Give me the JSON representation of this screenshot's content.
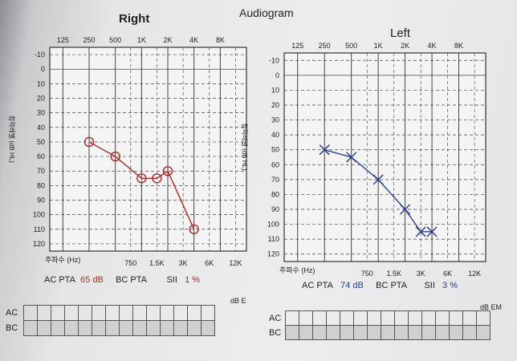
{
  "title": "Audiogram",
  "ears": [
    {
      "side": "Right",
      "marker": "circle",
      "color": "#b02a2a",
      "top_freq_labels": [
        "125",
        "250",
        "500",
        "1K",
        "2K",
        "4K",
        "8K"
      ],
      "bottom_freq_labels": [
        "750",
        "1.5K",
        "3K",
        "6K",
        "12K"
      ],
      "bottom_axis_label": "주파수 (Hz)",
      "y_axis_label": "청력레벨 (dB HL)",
      "y_ticks": [
        -10,
        0,
        10,
        20,
        30,
        40,
        50,
        60,
        70,
        80,
        90,
        100,
        110,
        120
      ],
      "summary": {
        "ac_pta_label": "AC PTA",
        "ac_pta_value": "65 dB",
        "bc_pta_label": "BC PTA",
        "sii_label": "SII",
        "sii_value": "1 %"
      },
      "table_unit": "dB E",
      "row_labels": [
        "AC",
        "BC"
      ]
    },
    {
      "side": "Left",
      "marker": "cross",
      "color": "#2d3f8c",
      "top_freq_labels": [
        "125",
        "250",
        "500",
        "1K",
        "2K",
        "4K",
        "8K"
      ],
      "bottom_freq_labels": [
        "750",
        "1.5K",
        "3K",
        "6K",
        "12K"
      ],
      "bottom_axis_label": "주파수 (Hz)",
      "y_axis_label": "청력레벨 (dB HL)",
      "y_ticks": [
        -10,
        0,
        10,
        20,
        30,
        40,
        50,
        60,
        70,
        80,
        90,
        100,
        110,
        120
      ],
      "summary": {
        "ac_pta_label": "AC PTA",
        "ac_pta_value": "74 dB",
        "bc_pta_label": "BC PTA",
        "sii_label": "SII",
        "sii_value": "3 %"
      },
      "table_unit": "dB EM",
      "row_labels": [
        "AC",
        "BC"
      ]
    }
  ],
  "chart_data": [
    {
      "type": "line",
      "title": "Right",
      "xlabel": "주파수 (Hz)",
      "ylabel": "청력레벨 (dB HL)",
      "ylim": [
        -10,
        120
      ],
      "y_inverted": true,
      "x_scale": "log",
      "grid": true,
      "series": [
        {
          "x": [
            250,
            500,
            1000,
            1500,
            2000,
            4000
          ],
          "y": [
            50,
            60,
            75,
            75,
            70,
            110
          ]
        }
      ]
    },
    {
      "type": "line",
      "title": "Left",
      "xlabel": "주파수 (Hz)",
      "ylabel": "청력레벨 (dB HL)",
      "ylim": [
        -10,
        120
      ],
      "y_inverted": true,
      "x_scale": "log",
      "grid": true,
      "series": [
        {
          "x": [
            250,
            500,
            1000,
            2000,
            3000,
            4000
          ],
          "y": [
            50,
            55,
            70,
            90,
            105,
            105
          ]
        }
      ]
    }
  ]
}
